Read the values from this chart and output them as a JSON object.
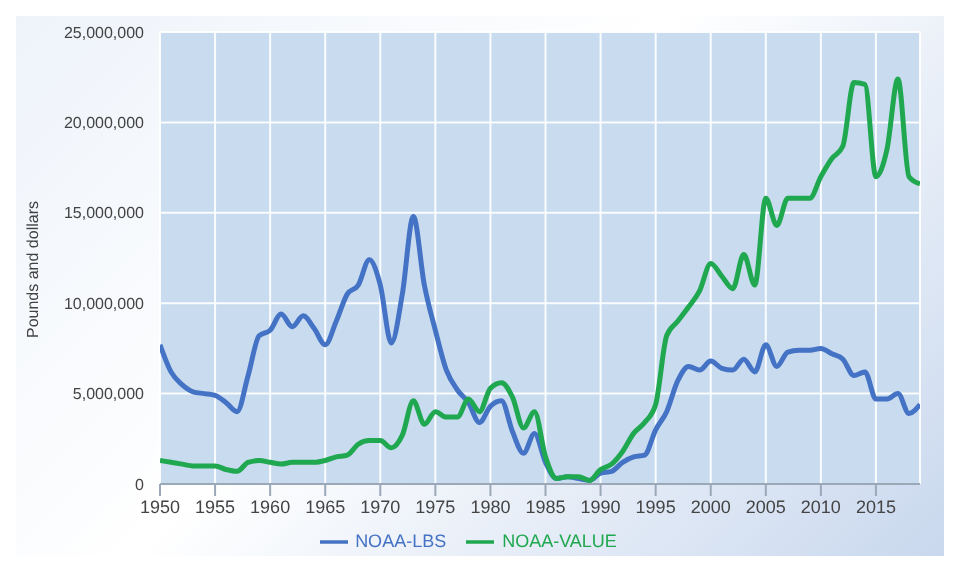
{
  "chart_data": {
    "type": "line",
    "ylabel": "Pounds and dollars",
    "x": [
      1950,
      1951,
      1952,
      1953,
      1954,
      1955,
      1956,
      1957,
      1958,
      1959,
      1960,
      1961,
      1962,
      1963,
      1964,
      1965,
      1966,
      1967,
      1968,
      1969,
      1970,
      1971,
      1972,
      1973,
      1974,
      1975,
      1976,
      1977,
      1978,
      1979,
      1980,
      1981,
      1982,
      1983,
      1984,
      1985,
      1986,
      1987,
      1988,
      1989,
      1990,
      1991,
      1992,
      1993,
      1994,
      1995,
      1996,
      1997,
      1998,
      1999,
      2000,
      2001,
      2002,
      2003,
      2004,
      2005,
      2006,
      2007,
      2008,
      2009,
      2010,
      2011,
      2012,
      2013,
      2014,
      2015,
      2016,
      2017,
      2018,
      2019
    ],
    "series": [
      {
        "name": "NOAA-LBS",
        "color": "#4472c4",
        "values": [
          7700000,
          6200000,
          5500000,
          5100000,
          5000000,
          4900000,
          4500000,
          4000000,
          6000000,
          8200000,
          8500000,
          9400000,
          8700000,
          9300000,
          8600000,
          7700000,
          9000000,
          10500000,
          11000000,
          12400000,
          11000000,
          7800000,
          10500000,
          14800000,
          11000000,
          8500000,
          6300000,
          5200000,
          4500000,
          3400000,
          4300000,
          4600000,
          2900000,
          1700000,
          2800000,
          1200000,
          300000,
          400000,
          300000,
          200000,
          600000,
          700000,
          1200000,
          1500000,
          1600000,
          3000000,
          4000000,
          5700000,
          6500000,
          6300000,
          6800000,
          6400000,
          6300000,
          6900000,
          6200000,
          7700000,
          6500000,
          7300000,
          7400000,
          7400000,
          7500000,
          7200000,
          6900000,
          6000000,
          6200000,
          4700000,
          4700000,
          5000000,
          3900000,
          4400000
        ]
      },
      {
        "name": "NOAA-VALUE",
        "color": "#1fa84f",
        "values": [
          1300000,
          1200000,
          1100000,
          1000000,
          1000000,
          1000000,
          800000,
          700000,
          1200000,
          1300000,
          1200000,
          1100000,
          1200000,
          1200000,
          1200000,
          1300000,
          1500000,
          1600000,
          2200000,
          2400000,
          2400000,
          2000000,
          2700000,
          4600000,
          3300000,
          4000000,
          3700000,
          3700000,
          4700000,
          4000000,
          5300000,
          5600000,
          4800000,
          3100000,
          4000000,
          1500000,
          300000,
          400000,
          400000,
          200000,
          800000,
          1100000,
          1800000,
          2800000,
          3400000,
          4400000,
          8200000,
          9000000,
          9800000,
          10700000,
          12200000,
          11500000,
          10800000,
          12700000,
          11000000,
          15800000,
          14300000,
          15800000,
          15800000,
          15800000,
          17000000,
          18000000,
          18700000,
          22200000,
          22100000,
          17000000,
          18500000,
          22400000,
          17000000,
          16600000
        ]
      }
    ],
    "xlim": [
      1950,
      2019
    ],
    "xticks": [
      1950,
      1955,
      1960,
      1965,
      1970,
      1975,
      1980,
      1985,
      1990,
      1995,
      2000,
      2005,
      2010,
      2015
    ],
    "ylim": [
      0,
      25000000
    ],
    "yticks": [
      0,
      {
        "value": 5000000,
        "label": "5,000,000"
      },
      {
        "value": 10000000,
        "label": "10,000,000"
      },
      {
        "value": 15000000,
        "label": "15,000,000"
      },
      {
        "value": 20000000,
        "label": "20,000,000"
      },
      {
        "value": 25000000,
        "label": "25,000,000"
      }
    ],
    "grid": true,
    "legend": "bottom",
    "marker": "none",
    "line_style": "solid"
  }
}
